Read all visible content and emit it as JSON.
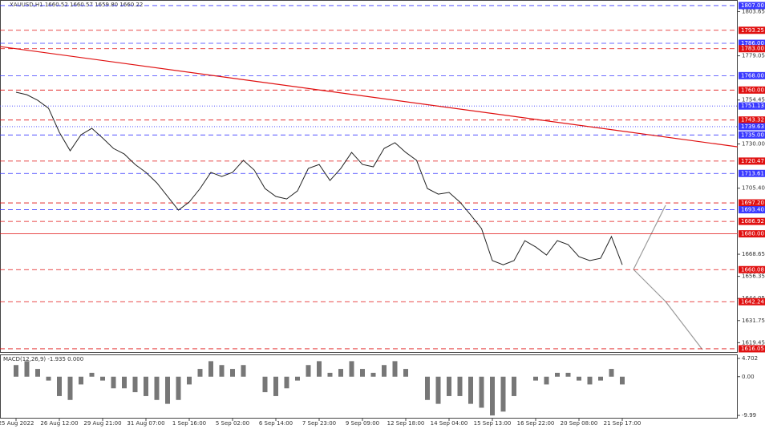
{
  "chart_data": [
    {
      "type": "line",
      "title": "XAUUSD,H1 1660.52 1660.57 1659.80 1660.22",
      "x": [
        "25 Aug 2022",
        null,
        null,
        null,
        "26 Aug 12:00",
        null,
        null,
        null,
        "29 Aug 21:00",
        null,
        null,
        null,
        "31 Aug 07:00",
        null,
        null,
        null,
        "1 Sep 16:00",
        null,
        null,
        null,
        "5 Sep 02:00",
        null,
        null,
        null,
        "6 Sep 14:00",
        null,
        null,
        null,
        "7 Sep 23:00",
        null,
        null,
        null,
        "9 Sep 09:00",
        null,
        null,
        null,
        "12 Sep 18:00",
        null,
        null,
        null,
        "14 Sep 04:00",
        null,
        null,
        null,
        "15 Sep 13:00",
        null,
        null,
        null,
        "16 Sep 22:00",
        null,
        null,
        null,
        "20 Sep 08:00",
        null,
        null,
        null,
        "21 Sep 17:00"
      ],
      "series": [
        {
          "color": "#222222",
          "values": [
            1758.8,
            1757.4,
            1754.3,
            1749.9,
            1736.5,
            1726.2,
            1735.1,
            1738.7,
            1733.3,
            1727.5,
            1724.4,
            1718.6,
            1714.2,
            1708.4,
            1700.8,
            1693.2,
            1697.7,
            1705.2,
            1714.2,
            1711.9,
            1714.2,
            1720.9,
            1715.5,
            1705.2,
            1700.8,
            1699.4,
            1703.9,
            1716.4,
            1718.6,
            1709.7,
            1716.4,
            1725.3,
            1718.6,
            1717.3,
            1727.5,
            1730.7,
            1725.3,
            1720.9,
            1705.2,
            1702.1,
            1703.0,
            1697.7,
            1690.5,
            1682.9,
            1665.1,
            1662.8,
            1665.1,
            1676.2,
            1672.7,
            1668.2,
            1676.2,
            1674.0,
            1667.3,
            1665.1,
            1666.4,
            1678.5,
            1662.8
          ]
        }
      ],
      "ylim": [
        1613.8,
        1810.1
      ],
      "yticks": [
        1803.65,
        1779.05,
        1754.45,
        {
          "value": 1730,
          "label": "1730.00"
        },
        {
          "value": 1705.4,
          "label": "1705.40"
        },
        1668.65,
        1656.35,
        1644.05,
        1631.75,
        1619.45
      ],
      "trendline": {
        "start": 1784.2,
        "end": 1728.4,
        "color": "#e01010"
      },
      "levels": [
        {
          "value": 1807,
          "label": "1807.00",
          "color": "#3a3aff",
          "style": "dashed"
        },
        {
          "value": 1793.25,
          "label": "1793.25",
          "color": "#e01010",
          "style": "dashed"
        },
        {
          "value": 1786,
          "label": "1786.00",
          "color": "#3a3aff",
          "style": "dashed"
        },
        {
          "value": 1783,
          "label": "1783.00",
          "color": "#e01010",
          "style": "dashed"
        },
        {
          "value": 1768,
          "label": "1768.00",
          "color": "#3a3aff",
          "style": "dashed"
        },
        {
          "value": 1760,
          "label": "1760.00",
          "color": "#e01010",
          "style": "dashed"
        },
        {
          "value": 1751.13,
          "label": "1751.13",
          "color": "#3a3aff",
          "style": "dotted"
        },
        {
          "value": 1743.32,
          "label": "1743.32",
          "color": "#e01010",
          "style": "dashed"
        },
        {
          "value": 1739.63,
          "label": "1739.63",
          "color": "#3a3aff",
          "style": "dotted"
        },
        {
          "value": 1735,
          "label": "1735.00",
          "color": "#3a3aff",
          "style": "dashed"
        },
        {
          "value": 1720.47,
          "label": "1720.47",
          "color": "#e01010",
          "style": "dashed"
        },
        {
          "value": 1713.61,
          "label": "1713.61",
          "color": "#3a3aff",
          "style": "dashed"
        },
        {
          "value": 1697.2,
          "label": "1697.20",
          "color": "#e01010",
          "style": "dashed"
        },
        {
          "value": 1693.4,
          "label": "1693.40",
          "color": "#3a3aff",
          "style": "dashed"
        },
        {
          "value": 1686.92,
          "label": "1686.92",
          "color": "#e01010",
          "style": "dashed"
        },
        {
          "value": 1680,
          "label": "1680.00",
          "color": "#e01010",
          "style": "solid"
        },
        {
          "value": 1660.08,
          "label": "1660.08",
          "color": "#e01010",
          "style": "dashed"
        },
        {
          "value": 1642.24,
          "label": "1642.24",
          "color": "#e01010",
          "style": "dashed"
        },
        {
          "value": 1616.05,
          "label": "1616.05",
          "color": "#e01010",
          "style": "dashed"
        }
      ]
    },
    {
      "type": "bar",
      "title": "MACD(12,26,9) -1.935 0.000",
      "color": "#777777",
      "values": [
        3,
        4,
        2,
        -1,
        -5,
        -6,
        -2,
        1,
        -1,
        -3,
        -3,
        -4,
        -5,
        -6,
        -7,
        -6,
        -2,
        2,
        4,
        3,
        2,
        3,
        0,
        -4,
        -5,
        -3,
        -1,
        3,
        4,
        1,
        2,
        4,
        2,
        1,
        3,
        4,
        2,
        0,
        -6,
        -7,
        -5,
        -5,
        -7,
        -8,
        -10,
        -9,
        -5,
        0,
        -1,
        -2,
        1,
        1,
        -1,
        -2,
        -1,
        2,
        -2
      ],
      "ylim": [
        -10.8,
        5.53
      ],
      "yticks": [
        4.702,
        {
          "value": 0,
          "label": "0.00"
        },
        -9.99
      ]
    }
  ]
}
